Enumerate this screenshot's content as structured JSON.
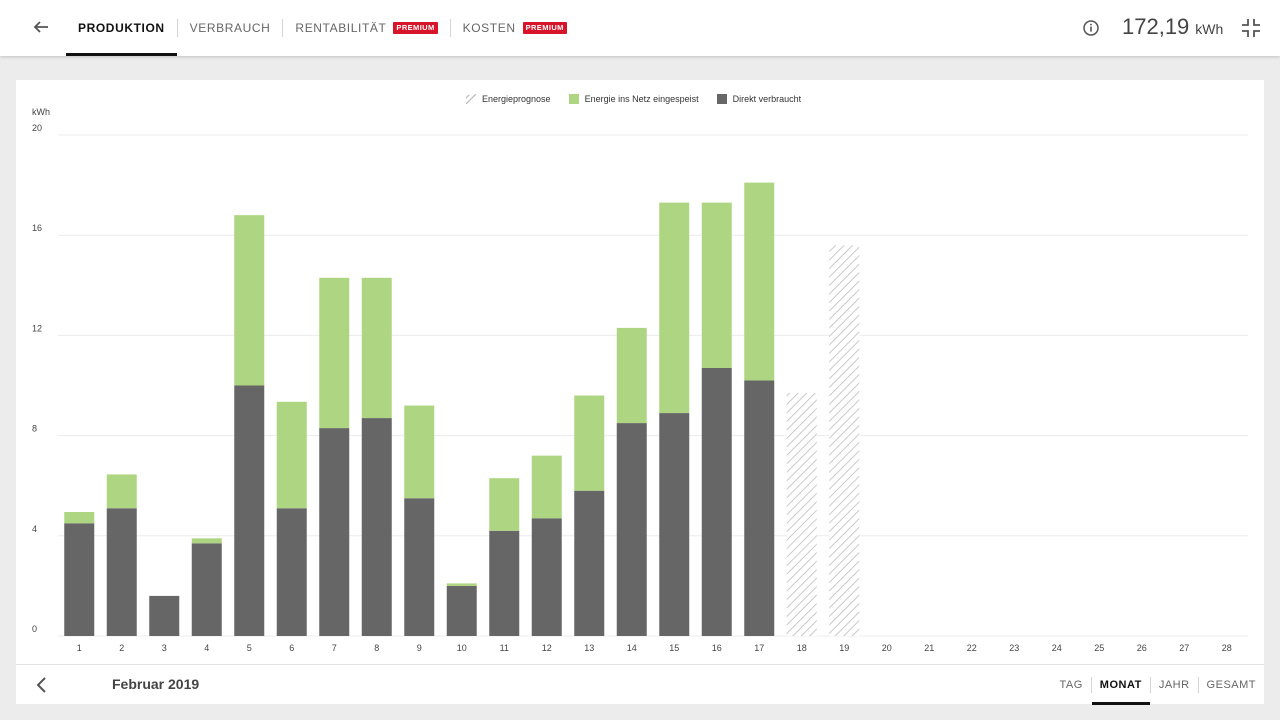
{
  "header": {
    "tabs": [
      {
        "label": "PRODUKTION",
        "active": true,
        "badge": ""
      },
      {
        "label": "VERBRAUCH",
        "active": false,
        "badge": ""
      },
      {
        "label": "RENTABILITÄT",
        "active": false,
        "badge": "PREMIUM"
      },
      {
        "label": "KOSTEN",
        "active": false,
        "badge": "PREMIUM"
      }
    ],
    "total_value": "172,19",
    "total_unit": "kWh",
    "icons": {
      "back": "arrow-left-icon",
      "info": "info-icon",
      "collapse": "collapse-icon"
    }
  },
  "footer": {
    "period": "Februar 2019",
    "ranges": [
      {
        "label": "TAG",
        "active": false
      },
      {
        "label": "MONAT",
        "active": true
      },
      {
        "label": "JAHR",
        "active": false
      },
      {
        "label": "GESAMT",
        "active": false
      }
    ],
    "prev_icon": "chevron-left-icon"
  },
  "colors": {
    "direct": "#666666",
    "grid_feed": "#aed581",
    "forecast": "#bdbdbd",
    "premium": "#d7142a"
  },
  "chart_data": {
    "type": "bar",
    "stacked": true,
    "ylabel": "kWh",
    "ylim": [
      0,
      20
    ],
    "yticks": [
      0,
      4,
      8,
      12,
      16,
      20
    ],
    "grid": true,
    "legend_position": "top-center",
    "categories": [
      "1",
      "2",
      "3",
      "4",
      "5",
      "6",
      "7",
      "8",
      "9",
      "10",
      "11",
      "12",
      "13",
      "14",
      "15",
      "16",
      "17",
      "18",
      "19",
      "20",
      "21",
      "22",
      "23",
      "24",
      "25",
      "26",
      "27",
      "28"
    ],
    "series": [
      {
        "name": "Direkt verbraucht",
        "values": [
          4.5,
          5.1,
          1.6,
          3.7,
          10.0,
          5.1,
          8.3,
          8.7,
          5.5,
          2.0,
          4.2,
          4.7,
          5.8,
          8.5,
          8.9,
          10.7,
          10.2,
          null,
          null,
          null,
          null,
          null,
          null,
          null,
          null,
          null,
          null,
          null
        ]
      },
      {
        "name": "Energie ins Netz eingespeist",
        "values": [
          0.45,
          1.35,
          0,
          0.2,
          6.8,
          4.25,
          6.0,
          5.6,
          3.7,
          0.1,
          2.1,
          2.5,
          3.8,
          3.8,
          8.4,
          6.6,
          7.9,
          null,
          null,
          null,
          null,
          null,
          null,
          null,
          null,
          null,
          null,
          null
        ]
      },
      {
        "name": "Energieprognose",
        "values": [
          null,
          null,
          null,
          null,
          null,
          null,
          null,
          null,
          null,
          null,
          null,
          null,
          null,
          null,
          null,
          null,
          null,
          9.7,
          15.6,
          null,
          null,
          null,
          null,
          null,
          null,
          null,
          null,
          null
        ]
      }
    ]
  }
}
